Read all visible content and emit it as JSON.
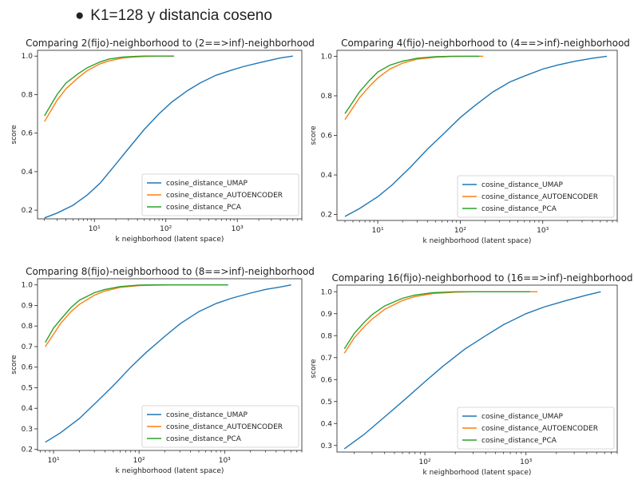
{
  "heading": {
    "bullet": "●",
    "text": "K1=128 y distancia coseno"
  },
  "colors": {
    "UMAP": "#1f77b4",
    "AUTOENCODER": "#ff7f0e",
    "PCA": "#2ca02c"
  },
  "chart_data": [
    {
      "type": "line",
      "xscale": "log",
      "title": "Comparing 2(fijo)-neighborhood to (2==>inf)-neighborhood",
      "xlabel": "k neighborhood (latent space)",
      "ylabel": "score",
      "xlim": [
        1.6,
        8000
      ],
      "ylim": [
        0.155,
        1.03
      ],
      "xticks": [
        10,
        100,
        1000
      ],
      "xticklabels": [
        "10¹",
        "10²",
        "10³"
      ],
      "yticks": [
        0.2,
        0.4,
        0.6,
        0.8,
        1.0
      ],
      "yticklabels": [
        "0.2",
        "0.4",
        "0.6",
        "0.8",
        "1.0"
      ],
      "legend": "lower-right",
      "series": [
        {
          "name": "cosine_distance_UMAP",
          "x": [
            2,
            3,
            5,
            8,
            12,
            20,
            30,
            50,
            80,
            120,
            200,
            300,
            500,
            800,
            1200,
            2000,
            3000,
            4000,
            6000
          ],
          "y": [
            0.16,
            0.185,
            0.225,
            0.28,
            0.34,
            0.44,
            0.52,
            0.62,
            0.7,
            0.76,
            0.82,
            0.86,
            0.9,
            0.925,
            0.945,
            0.965,
            0.98,
            0.99,
            1.0
          ]
        },
        {
          "name": "cosine_distance_AUTOENCODER",
          "x": [
            2,
            3,
            4,
            6,
            8,
            12,
            16,
            25,
            35,
            50,
            80,
            130
          ],
          "y": [
            0.66,
            0.77,
            0.83,
            0.89,
            0.925,
            0.96,
            0.975,
            0.99,
            0.995,
            0.998,
            1.0,
            1.0
          ]
        },
        {
          "name": "cosine_distance_PCA",
          "x": [
            2,
            3,
            4,
            6,
            8,
            12,
            16,
            25,
            35,
            50,
            80,
            130
          ],
          "y": [
            0.69,
            0.8,
            0.86,
            0.91,
            0.94,
            0.97,
            0.985,
            0.995,
            0.998,
            1.0,
            1.0,
            1.0
          ]
        }
      ]
    },
    {
      "type": "line",
      "xscale": "log",
      "title": "Comparing 4(fijo)-neighborhood to (4==>inf)-neighborhood",
      "xlabel": "k neighborhood (latent space)",
      "ylabel": "score",
      "xlim": [
        3.2,
        8000
      ],
      "ylim": [
        0.17,
        1.03
      ],
      "xticks": [
        10,
        100,
        1000
      ],
      "xticklabels": [
        "10¹",
        "10²",
        "10³"
      ],
      "yticks": [
        0.2,
        0.4,
        0.6,
        0.8,
        1.0
      ],
      "yticklabels": [
        "0.2",
        "0.4",
        "0.6",
        "0.8",
        "1.0"
      ],
      "legend": "lower-right",
      "series": [
        {
          "name": "cosine_distance_UMAP",
          "x": [
            4,
            6,
            10,
            15,
            25,
            40,
            60,
            100,
            150,
            250,
            400,
            600,
            1000,
            1500,
            2500,
            4000,
            6000
          ],
          "y": [
            0.19,
            0.23,
            0.29,
            0.35,
            0.44,
            0.53,
            0.6,
            0.69,
            0.75,
            0.82,
            0.87,
            0.9,
            0.935,
            0.955,
            0.975,
            0.99,
            1.0
          ]
        },
        {
          "name": "cosine_distance_AUTOENCODER",
          "x": [
            4,
            5,
            6,
            8,
            10,
            14,
            20,
            30,
            50,
            80,
            130,
            190
          ],
          "y": [
            0.68,
            0.74,
            0.79,
            0.85,
            0.89,
            0.935,
            0.965,
            0.985,
            0.995,
            0.999,
            1.0,
            1.0
          ]
        },
        {
          "name": "cosine_distance_PCA",
          "x": [
            4,
            5,
            6,
            8,
            10,
            14,
            20,
            30,
            50,
            80,
            130,
            170
          ],
          "y": [
            0.71,
            0.77,
            0.82,
            0.88,
            0.92,
            0.955,
            0.975,
            0.99,
            0.998,
            1.0,
            1.0,
            1.0
          ]
        }
      ]
    },
    {
      "type": "line",
      "xscale": "log",
      "title": "Comparing 8(fijo)-neighborhood to (8==>inf)-neighborhood",
      "xlabel": "k neighborhood (latent space)",
      "ylabel": "score",
      "xlim": [
        6.5,
        8000
      ],
      "ylim": [
        0.195,
        1.03
      ],
      "xticks": [
        10,
        100,
        1000
      ],
      "xticklabels": [
        "10¹",
        "10²",
        "10³"
      ],
      "yticks": [
        0.2,
        0.3,
        0.4,
        0.5,
        0.6,
        0.7,
        0.8,
        0.9,
        1.0
      ],
      "yticklabels": [
        "0.2",
        "0.3",
        "0.4",
        "0.5",
        "0.6",
        "0.7",
        "0.8",
        "0.9",
        "1.0"
      ],
      "legend": "lower-right",
      "series": [
        {
          "name": "cosine_distance_UMAP",
          "x": [
            8,
            12,
            20,
            30,
            50,
            80,
            120,
            200,
            300,
            500,
            800,
            1200,
            2000,
            3000,
            4500,
            6000
          ],
          "y": [
            0.235,
            0.28,
            0.35,
            0.42,
            0.51,
            0.6,
            0.67,
            0.75,
            0.81,
            0.87,
            0.91,
            0.935,
            0.96,
            0.978,
            0.99,
            1.0
          ]
        },
        {
          "name": "cosine_distance_AUTOENCODER",
          "x": [
            8,
            10,
            12,
            16,
            20,
            30,
            40,
            60,
            100,
            150,
            250,
            400,
            700,
            1100
          ],
          "y": [
            0.7,
            0.76,
            0.81,
            0.87,
            0.905,
            0.95,
            0.97,
            0.988,
            0.997,
            0.999,
            1.0,
            1.0,
            1.0,
            1.0
          ]
        },
        {
          "name": "cosine_distance_PCA",
          "x": [
            8,
            10,
            12,
            16,
            20,
            30,
            40,
            60,
            100,
            150,
            250,
            400,
            700,
            1100
          ],
          "y": [
            0.72,
            0.79,
            0.83,
            0.89,
            0.925,
            0.962,
            0.978,
            0.992,
            0.999,
            1.0,
            1.0,
            1.0,
            1.0,
            1.0
          ]
        }
      ]
    },
    {
      "type": "line",
      "xscale": "log",
      "title": "Comparing 16(fijo)-neighborhood to (16==>inf)-neighborhood",
      "xlabel": "k neighborhood (latent space)",
      "ylabel": "score",
      "xlim": [
        13.5,
        8000
      ],
      "ylim": [
        0.27,
        1.03
      ],
      "xticks": [
        100,
        1000
      ],
      "xticklabels": [
        "10²",
        "10³"
      ],
      "yticks": [
        0.3,
        0.4,
        0.5,
        0.6,
        0.7,
        0.8,
        0.9,
        1.0
      ],
      "yticklabels": [
        "0.3",
        "0.4",
        "0.5",
        "0.6",
        "0.7",
        "0.8",
        "0.9",
        "1.0"
      ],
      "legend": "lower-right",
      "series": [
        {
          "name": "cosine_distance_UMAP",
          "x": [
            16,
            25,
            40,
            60,
            100,
            150,
            250,
            400,
            600,
            1000,
            1500,
            2500,
            4000,
            5500
          ],
          "y": [
            0.285,
            0.35,
            0.43,
            0.5,
            0.59,
            0.66,
            0.74,
            0.8,
            0.85,
            0.9,
            0.93,
            0.96,
            0.985,
            1.0
          ]
        },
        {
          "name": "cosine_distance_AUTOENCODER",
          "x": [
            16,
            20,
            25,
            30,
            40,
            60,
            80,
            120,
            200,
            300,
            500,
            800,
            1300
          ],
          "y": [
            0.72,
            0.79,
            0.84,
            0.875,
            0.92,
            0.96,
            0.978,
            0.992,
            0.998,
            1.0,
            1.0,
            1.0,
            1.0
          ]
        },
        {
          "name": "cosine_distance_PCA",
          "x": [
            16,
            20,
            25,
            30,
            40,
            60,
            80,
            120,
            200,
            300,
            500,
            800,
            1100
          ],
          "y": [
            0.74,
            0.81,
            0.86,
            0.895,
            0.935,
            0.97,
            0.985,
            0.996,
            1.0,
            1.0,
            1.0,
            1.0,
            1.0
          ]
        }
      ]
    }
  ]
}
